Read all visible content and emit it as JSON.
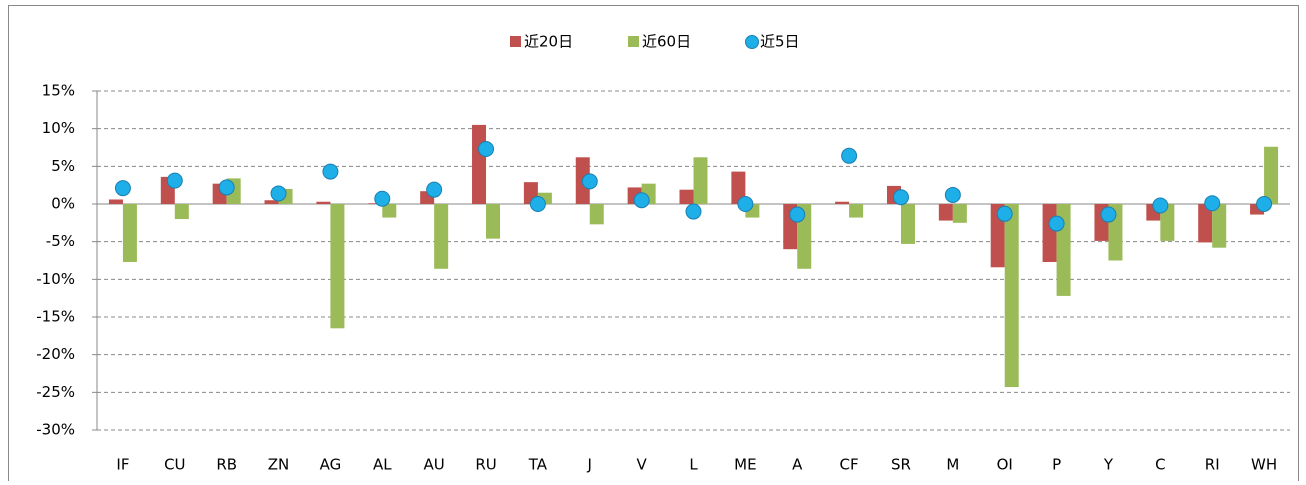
{
  "chart_data": {
    "type": "bar",
    "categories": [
      "IF",
      "CU",
      "RB",
      "ZN",
      "AG",
      "AL",
      "AU",
      "RU",
      "TA",
      "J",
      "V",
      "L",
      "ME",
      "A",
      "CF",
      "SR",
      "M",
      "OI",
      "P",
      "Y",
      "C",
      "RI",
      "WH"
    ],
    "series": [
      {
        "name": "近20日",
        "type": "bar",
        "color": "#c0504d",
        "values": [
          0.6,
          3.6,
          2.7,
          0.5,
          0.3,
          0.1,
          1.7,
          10.5,
          2.9,
          6.2,
          2.2,
          1.9,
          4.3,
          -6.0,
          0.3,
          2.4,
          -2.2,
          -8.4,
          -7.7,
          -4.9,
          -2.2,
          -5.1,
          -1.4
        ]
      },
      {
        "name": "近60日",
        "type": "bar",
        "color": "#9bbb59",
        "values": [
          -7.7,
          -2.0,
          3.4,
          2.0,
          -16.5,
          -1.8,
          -8.6,
          -4.6,
          1.5,
          -2.7,
          2.7,
          6.2,
          -1.8,
          -8.6,
          -1.8,
          -5.3,
          -2.5,
          -24.3,
          -12.2,
          -7.5,
          -4.9,
          -5.8,
          7.6
        ]
      },
      {
        "name": "近5日",
        "type": "scatter",
        "color": "#1eaee8",
        "values": [
          2.1,
          3.1,
          2.2,
          1.4,
          4.3,
          0.7,
          1.9,
          7.3,
          0.0,
          3.0,
          0.5,
          -1.0,
          0.0,
          -1.4,
          6.4,
          0.9,
          1.2,
          -1.3,
          -2.6,
          -1.4,
          -0.2,
          0.1,
          0.0
        ]
      }
    ],
    "ylim": [
      -30,
      15
    ],
    "yticks": [
      {
        "value": -30,
        "label": "-30%"
      },
      {
        "value": -25,
        "label": "-25%"
      },
      {
        "value": -20,
        "label": "-20%"
      },
      {
        "value": -15,
        "label": "-15%"
      },
      {
        "value": -10,
        "label": "-10%"
      },
      {
        "value": -5,
        "label": "-5%"
      },
      {
        "value": 0,
        "label": "0%"
      },
      {
        "value": 5,
        "label": "5%"
      },
      {
        "value": 10,
        "label": "10%"
      },
      {
        "value": 15,
        "label": "15%"
      }
    ],
    "grid": true,
    "legend": "top"
  }
}
